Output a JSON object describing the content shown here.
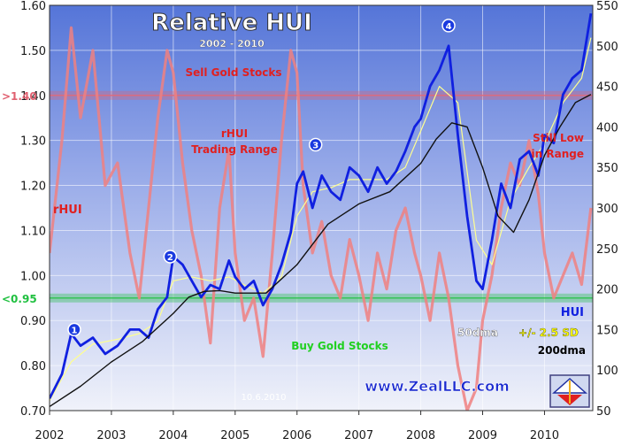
{
  "chart_data": {
    "type": "line",
    "title": "Relative HUI",
    "subtitle": "2002 - 2010",
    "x_ticks": [
      "2002",
      "2003",
      "2004",
      "2005",
      "2006",
      "2007",
      "2008",
      "2009",
      "2010"
    ],
    "y_left_range": [
      0.7,
      1.6
    ],
    "y_left_ticks": [
      "0.70",
      "0.80",
      "0.90",
      "1.00",
      "1.10",
      "1.20",
      "1.30",
      "1.40",
      "1.50",
      "1.60"
    ],
    "y_right_range": [
      50,
      550
    ],
    "y_right_ticks": [
      "50",
      "100",
      "150",
      "200",
      "250",
      "300",
      "350",
      "400",
      "450",
      "500",
      "550"
    ],
    "grid": true,
    "bands": [
      {
        "label": ">1.40",
        "value": 1.4,
        "color": "#e06070"
      },
      {
        "label": "<0.95",
        "value": 0.95,
        "color": "#20c040"
      }
    ],
    "series": [
      {
        "name": "rHUI",
        "axis": "left",
        "color": "#f08080",
        "x": [
          2002.0,
          2002.2,
          2002.35,
          2002.5,
          2002.7,
          2002.9,
          2003.1,
          2003.3,
          2003.45,
          2003.6,
          2003.75,
          2003.9,
          2004.0,
          2004.15,
          2004.3,
          2004.45,
          2004.6,
          2004.75,
          2004.9,
          2005.0,
          2005.15,
          2005.3,
          2005.45,
          2005.6,
          2005.75,
          2005.9,
          2006.0,
          2006.1,
          2006.25,
          2006.4,
          2006.55,
          2006.7,
          2006.85,
          2007.0,
          2007.15,
          2007.3,
          2007.45,
          2007.6,
          2007.75,
          2007.9,
          2008.0,
          2008.15,
          2008.3,
          2008.45,
          2008.6,
          2008.75,
          2008.9,
          2009.0,
          2009.15,
          2009.3,
          2009.45,
          2009.6,
          2009.75,
          2009.9,
          2010.0,
          2010.15,
          2010.3,
          2010.45,
          2010.6,
          2010.75
        ],
        "y": [
          1.05,
          1.3,
          1.55,
          1.35,
          1.5,
          1.2,
          1.25,
          1.05,
          0.95,
          1.15,
          1.35,
          1.5,
          1.45,
          1.25,
          1.1,
          1.0,
          0.85,
          1.15,
          1.28,
          1.05,
          0.9,
          0.95,
          0.82,
          1.05,
          1.3,
          1.5,
          1.45,
          1.2,
          1.05,
          1.12,
          1.0,
          0.95,
          1.08,
          1.0,
          0.9,
          1.05,
          0.97,
          1.1,
          1.15,
          1.05,
          1.0,
          0.9,
          1.05,
          0.95,
          0.8,
          0.7,
          0.75,
          0.9,
          1.0,
          1.15,
          1.25,
          1.2,
          1.3,
          1.18,
          1.05,
          0.95,
          1.0,
          1.05,
          0.98,
          1.15
        ]
      },
      {
        "name": "HUI",
        "axis": "right",
        "color": "#1020e0",
        "x": [
          2002.0,
          2002.2,
          2002.35,
          2002.5,
          2002.7,
          2002.9,
          2003.1,
          2003.3,
          2003.45,
          2003.6,
          2003.75,
          2003.9,
          2004.0,
          2004.15,
          2004.3,
          2004.45,
          2004.6,
          2004.75,
          2004.9,
          2005.0,
          2005.15,
          2005.3,
          2005.45,
          2005.6,
          2005.75,
          2005.9,
          2006.0,
          2006.1,
          2006.25,
          2006.4,
          2006.55,
          2006.7,
          2006.85,
          2007.0,
          2007.15,
          2007.3,
          2007.45,
          2007.6,
          2007.75,
          2007.9,
          2008.0,
          2008.15,
          2008.3,
          2008.45,
          2008.6,
          2008.75,
          2008.9,
          2009.0,
          2009.15,
          2009.3,
          2009.45,
          2009.6,
          2009.75,
          2009.9,
          2010.0,
          2010.15,
          2010.3,
          2010.45,
          2010.6,
          2010.75
        ],
        "y": [
          65,
          95,
          145,
          130,
          140,
          120,
          130,
          150,
          150,
          140,
          175,
          190,
          240,
          230,
          210,
          190,
          205,
          200,
          235,
          215,
          200,
          210,
          180,
          200,
          230,
          270,
          330,
          345,
          300,
          340,
          320,
          310,
          350,
          340,
          320,
          350,
          330,
          345,
          370,
          400,
          410,
          450,
          470,
          500,
          390,
          290,
          210,
          200,
          260,
          330,
          300,
          360,
          370,
          340,
          390,
          380,
          440,
          460,
          470,
          540
        ]
      },
      {
        "name": "50dma",
        "axis": "right",
        "color": "#ffff90",
        "x": [
          2002.0,
          2002.35,
          2002.7,
          2003.1,
          2003.45,
          2003.75,
          2004.0,
          2004.3,
          2004.6,
          2004.9,
          2005.15,
          2005.45,
          2005.75,
          2006.0,
          2006.25,
          2006.55,
          2006.85,
          2007.15,
          2007.45,
          2007.75,
          2008.0,
          2008.3,
          2008.6,
          2008.9,
          2009.15,
          2009.45,
          2009.75,
          2010.0,
          2010.3,
          2010.6,
          2010.75
        ],
        "y": [
          62,
          110,
          132,
          138,
          145,
          160,
          210,
          215,
          210,
          215,
          205,
          195,
          215,
          290,
          320,
          325,
          335,
          335,
          335,
          350,
          395,
          450,
          430,
          260,
          230,
          310,
          350,
          380,
          430,
          460,
          510
        ]
      },
      {
        "name": "200dma",
        "axis": "right",
        "color": "#111111",
        "x": [
          2002.0,
          2002.5,
          2003.0,
          2003.5,
          2004.0,
          2004.25,
          2004.5,
          2004.75,
          2005.0,
          2005.5,
          2006.0,
          2006.5,
          2007.0,
          2007.5,
          2008.0,
          2008.25,
          2008.5,
          2008.75,
          2009.0,
          2009.25,
          2009.5,
          2009.75,
          2010.0,
          2010.25,
          2010.5,
          2010.75
        ],
        "y": [
          55,
          80,
          110,
          135,
          170,
          190,
          197,
          198,
          195,
          195,
          230,
          280,
          305,
          320,
          355,
          385,
          405,
          400,
          350,
          290,
          270,
          310,
          365,
          400,
          430,
          440
        ]
      }
    ],
    "markers": [
      {
        "label": "1",
        "x": 2002.4,
        "y": 150
      },
      {
        "label": "2",
        "x": 2003.95,
        "y": 240
      },
      {
        "label": "3",
        "x": 2006.3,
        "y": 378
      },
      {
        "label": "4",
        "x": 2008.45,
        "y": 525
      }
    ],
    "annotations": {
      "sell": "Sell Gold Stocks",
      "range_line1": "rHUI",
      "range_line2": "Trading Range",
      "buy": "Buy Gold Stocks",
      "still_line1": "Still Low",
      "still_line2": "in Range",
      "rhui_label": "rHUI",
      "hui_label": "HUI",
      "dma50_label": "50dma",
      "sd_label": "+/- 2.5 SD",
      "dma200_label": "200dma",
      "date_stamp": "10.6.2010",
      "website": "www.ZealLLC.com"
    }
  }
}
